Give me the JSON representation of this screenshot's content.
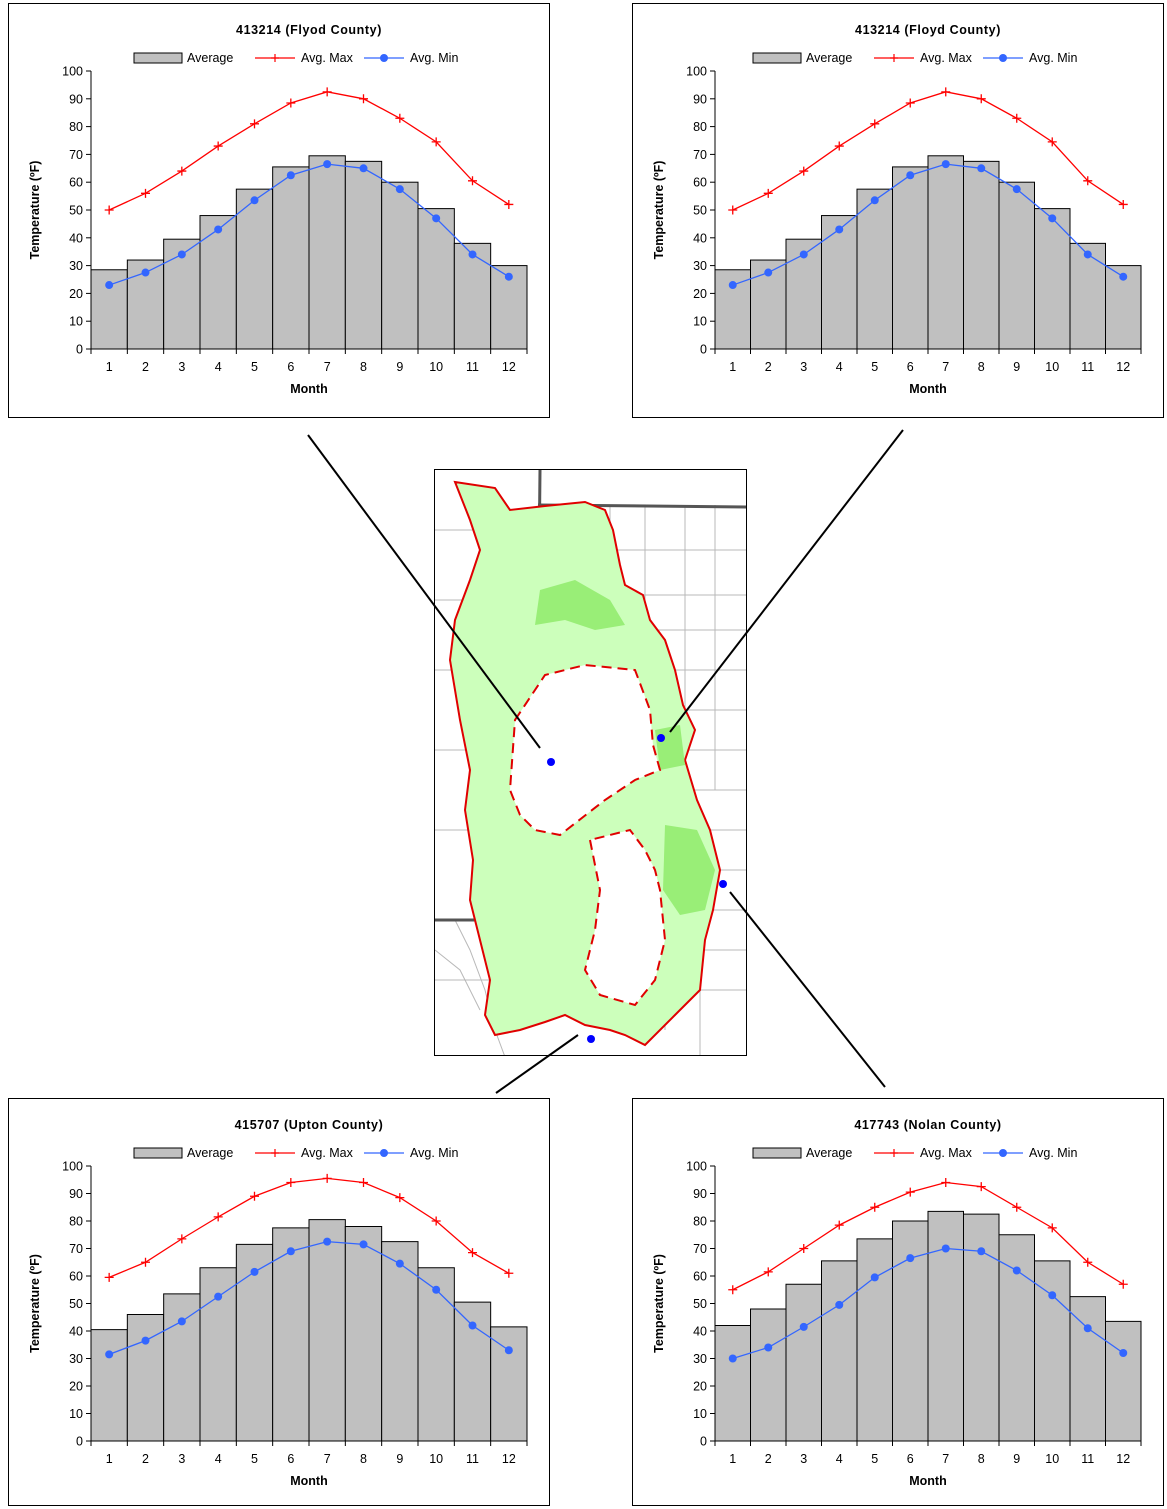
{
  "legend": {
    "average": "Average",
    "avg_max": "Avg. Max",
    "avg_min": "Avg. Min"
  },
  "colors": {
    "bar_fill": "#c0c0c0",
    "avg_max": "#ff0000",
    "avg_min": "#3366ff",
    "map_region": "#ccffbb",
    "map_region_dark": "#99ee77",
    "map_outline": "#e00000",
    "station": "#0000ff"
  },
  "chart_data": [
    {
      "id": "chart-tl",
      "type": "bar",
      "title": "413214 (Flyod County)",
      "xlabel": "Month",
      "ylabel": "Temperature (ºF)",
      "ylim": [
        0,
        100
      ],
      "yticks": [
        0,
        10,
        20,
        30,
        40,
        50,
        60,
        70,
        80,
        90,
        100
      ],
      "categories": [
        "1",
        "2",
        "3",
        "4",
        "5",
        "6",
        "7",
        "8",
        "9",
        "10",
        "11",
        "12"
      ],
      "legend_position": "top",
      "series": [
        {
          "name": "Average",
          "kind": "bar",
          "values": [
            28.5,
            32,
            39.5,
            48,
            57.5,
            65.5,
            69.5,
            67.5,
            60,
            50.5,
            38,
            30
          ]
        },
        {
          "name": "Avg. Max",
          "kind": "line",
          "values": [
            50,
            56,
            64,
            73,
            81,
            88.5,
            92.5,
            90,
            83,
            74.5,
            60.5,
            52
          ]
        },
        {
          "name": "Avg. Min",
          "kind": "line",
          "values": [
            23,
            27.5,
            34,
            43,
            53.5,
            62.5,
            66.5,
            65,
            57.5,
            47,
            34,
            26
          ]
        }
      ]
    },
    {
      "id": "chart-tr",
      "type": "bar",
      "title": "413214 (Floyd County)",
      "xlabel": "Month",
      "ylabel": "Temperature (ºF)",
      "ylim": [
        0,
        100
      ],
      "yticks": [
        0,
        10,
        20,
        30,
        40,
        50,
        60,
        70,
        80,
        90,
        100
      ],
      "categories": [
        "1",
        "2",
        "3",
        "4",
        "5",
        "6",
        "7",
        "8",
        "9",
        "10",
        "11",
        "12"
      ],
      "legend_position": "top",
      "series": [
        {
          "name": "Average",
          "kind": "bar",
          "values": [
            28.5,
            32,
            39.5,
            48,
            57.5,
            65.5,
            69.5,
            67.5,
            60,
            50.5,
            38,
            30
          ]
        },
        {
          "name": "Avg. Max",
          "kind": "line",
          "values": [
            50,
            56,
            64,
            73,
            81,
            88.5,
            92.5,
            90,
            83,
            74.5,
            60.5,
            52
          ]
        },
        {
          "name": "Avg. Min",
          "kind": "line",
          "values": [
            23,
            27.5,
            34,
            43,
            53.5,
            62.5,
            66.5,
            65,
            57.5,
            47,
            34,
            26
          ]
        }
      ]
    },
    {
      "id": "chart-bl",
      "type": "bar",
      "title": "415707 (Upton County)",
      "xlabel": "Month",
      "ylabel": "Temperature (ºF)",
      "ylim": [
        0,
        100
      ],
      "yticks": [
        0,
        10,
        20,
        30,
        40,
        50,
        60,
        70,
        80,
        90,
        100
      ],
      "categories": [
        "1",
        "2",
        "3",
        "4",
        "5",
        "6",
        "7",
        "8",
        "9",
        "10",
        "11",
        "12"
      ],
      "legend_position": "top",
      "series": [
        {
          "name": "Average",
          "kind": "bar",
          "values": [
            40.5,
            46,
            53.5,
            63,
            71.5,
            77.5,
            80.5,
            78,
            72.5,
            63,
            50.5,
            41.5
          ]
        },
        {
          "name": "Avg. Max",
          "kind": "line",
          "values": [
            59.5,
            65,
            73.5,
            81.5,
            89,
            94,
            95.5,
            94,
            88.5,
            80,
            68.5,
            61
          ]
        },
        {
          "name": "Avg. Min",
          "kind": "line",
          "values": [
            31.5,
            36.5,
            43.5,
            52.5,
            61.5,
            69,
            72.5,
            71.5,
            64.5,
            55,
            42,
            33
          ]
        }
      ]
    },
    {
      "id": "chart-br",
      "type": "bar",
      "title": "417743 (Nolan County)",
      "xlabel": "Month",
      "ylabel": "Temperature (ºF)",
      "ylim": [
        0,
        100
      ],
      "yticks": [
        0,
        10,
        20,
        30,
        40,
        50,
        60,
        70,
        80,
        90,
        100
      ],
      "categories": [
        "1",
        "2",
        "3",
        "4",
        "5",
        "6",
        "7",
        "8",
        "9",
        "10",
        "11",
        "12"
      ],
      "legend_position": "top",
      "series": [
        {
          "name": "Average",
          "kind": "bar",
          "values": [
            42,
            48,
            57,
            65.5,
            73.5,
            80,
            83.5,
            82.5,
            75,
            65.5,
            52.5,
            43.5
          ]
        },
        {
          "name": "Avg. Max",
          "kind": "line",
          "values": [
            55,
            61.5,
            70,
            78.5,
            85,
            90.5,
            94,
            92.5,
            85,
            77.5,
            65,
            57
          ]
        },
        {
          "name": "Avg. Min",
          "kind": "line",
          "values": [
            30,
            34,
            41.5,
            49.5,
            59.5,
            66.5,
            70,
            69,
            62,
            53,
            41,
            32
          ]
        }
      ]
    }
  ]
}
